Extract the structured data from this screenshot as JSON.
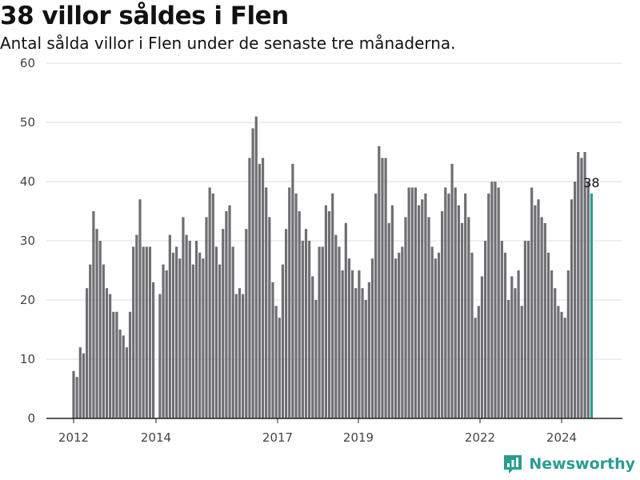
{
  "chart_data": {
    "type": "bar",
    "title": "38 villor såldes i Flen",
    "subtitle": "Antal sålda villor i Flen under de senaste tre månaderna.",
    "x_tick_labels": [
      "2012",
      "2014",
      "2017",
      "2019",
      "2022",
      "2024"
    ],
    "y_ticks": [
      0,
      10,
      20,
      30,
      40,
      50,
      60
    ],
    "ylim": [
      0,
      60
    ],
    "grid": true,
    "bar_color": "#6e6e73",
    "highlight_color": "#2a9d8f",
    "highlight_label": "38",
    "values": [
      8,
      7,
      12,
      11,
      22,
      26,
      35,
      32,
      30,
      26,
      22,
      21,
      18,
      18,
      15,
      14,
      12,
      18,
      29,
      31,
      37,
      29,
      29,
      29,
      23,
      0,
      21,
      26,
      25,
      31,
      28,
      29,
      27,
      34,
      31,
      30,
      26,
      30,
      28,
      27,
      34,
      39,
      38,
      29,
      26,
      32,
      35,
      36,
      29,
      21,
      22,
      21,
      32,
      44,
      49,
      51,
      43,
      44,
      39,
      34,
      23,
      19,
      17,
      26,
      32,
      39,
      43,
      38,
      35,
      30,
      32,
      30,
      24,
      20,
      29,
      29,
      36,
      35,
      38,
      31,
      29,
      25,
      33,
      27,
      25,
      22,
      25,
      22,
      20,
      23,
      27,
      38,
      46,
      44,
      44,
      33,
      36,
      27,
      28,
      29,
      34,
      39,
      39,
      39,
      36,
      37,
      38,
      34,
      29,
      27,
      28,
      35,
      39,
      38,
      43,
      39,
      36,
      33,
      38,
      34,
      28,
      17,
      19,
      24,
      30,
      38,
      40,
      40,
      39,
      30,
      28,
      20,
      24,
      22,
      25,
      19,
      30,
      30,
      39,
      36,
      37,
      34,
      33,
      28,
      25,
      22,
      19,
      18,
      17,
      25,
      37,
      40,
      45,
      44,
      45,
      40,
      38
    ]
  },
  "brand": {
    "name": "Newsworthy",
    "icon": "bar-chart-badge-icon"
  }
}
